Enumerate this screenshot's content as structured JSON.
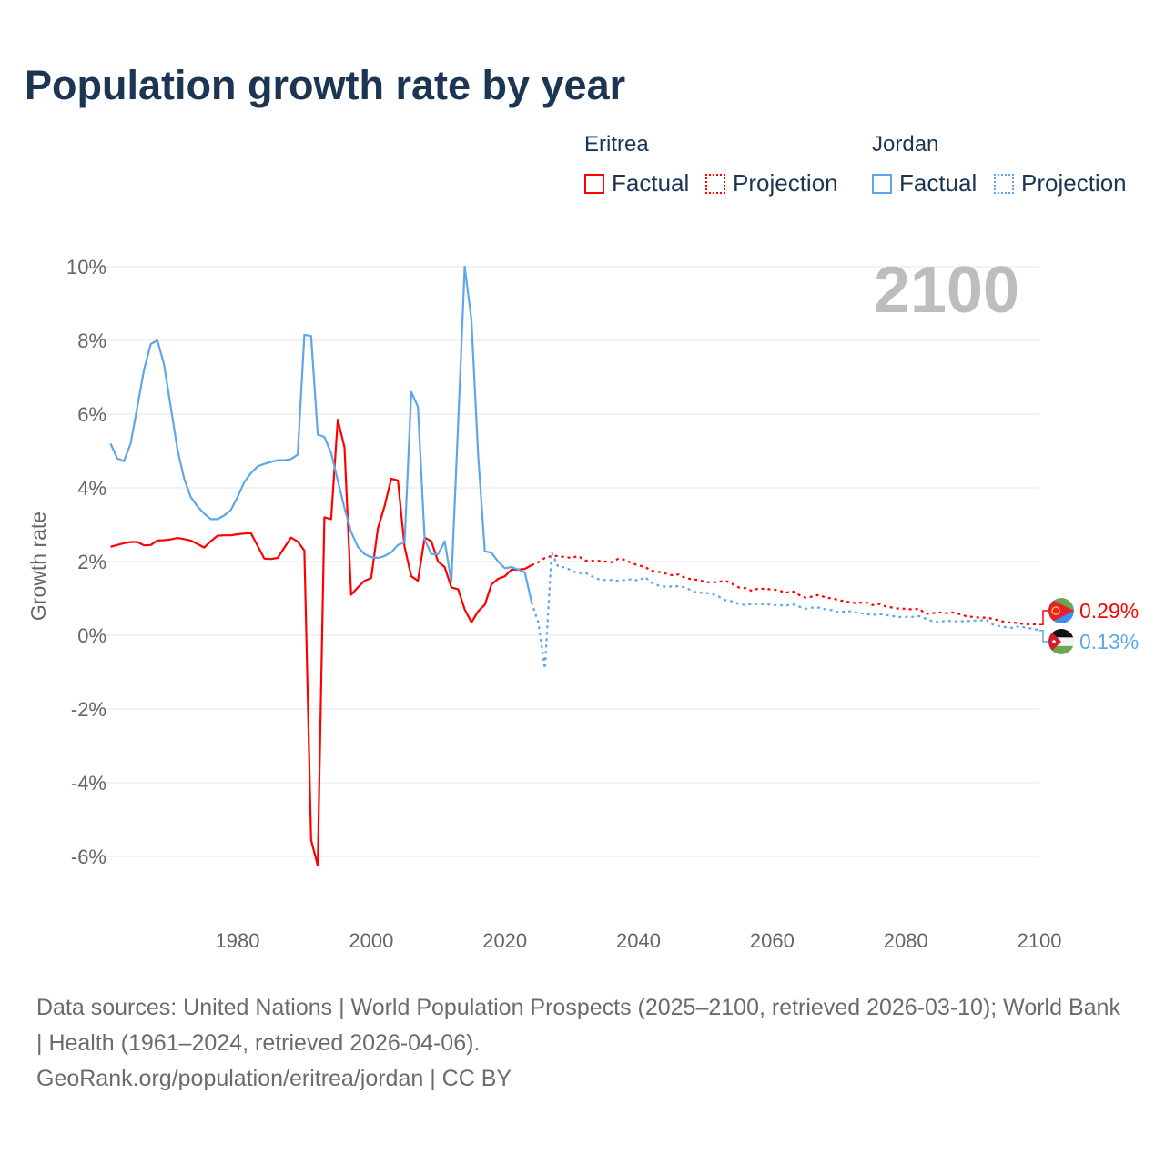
{
  "title": "Population growth rate by year",
  "legend": {
    "groups": [
      {
        "country": "Eritrea",
        "factual": "Factual",
        "projection": "Projection",
        "color": "#ff0000"
      },
      {
        "country": "Jordan",
        "factual": "Factual",
        "projection": "Projection",
        "color": "#5ea6ea"
      }
    ]
  },
  "footer": {
    "sources": "Data sources: United Nations | World Population Prospects (2025–2100, retrieved 2026-03-10); World Bank | Health (1961–2024, retrieved 2026-04-06).",
    "credit": "GeoRank.org/population/eritrea/jordan | CC BY"
  },
  "chart_data": {
    "type": "line",
    "title": "Population growth rate by year",
    "xlabel": "",
    "ylabel": "Growth rate",
    "xlim": [
      1961,
      2100
    ],
    "ylim": [
      -7.5,
      10.5
    ],
    "yticks": [
      -6,
      -4,
      -2,
      0,
      2,
      4,
      6,
      8,
      10
    ],
    "ytick_labels": [
      "-6%",
      "-4%",
      "-2%",
      "0%",
      "2%",
      "4%",
      "6%",
      "8%",
      "10%"
    ],
    "xticks": [
      1980,
      2000,
      2020,
      2040,
      2060,
      2080,
      2100
    ],
    "xtick_labels": [
      "1980",
      "2000",
      "2020",
      "2040",
      "2060",
      "2080",
      "2100"
    ],
    "grid": true,
    "year_watermark": "2100",
    "series": [
      {
        "name": "Eritrea Factual",
        "country": "Eritrea",
        "kind": "factual",
        "color": "#ff0000",
        "start_year": 1961,
        "values": [
          2.4,
          2.45,
          2.5,
          2.53,
          2.53,
          2.44,
          2.45,
          2.57,
          2.58,
          2.6,
          2.64,
          2.61,
          2.57,
          2.48,
          2.38,
          2.55,
          2.7,
          2.71,
          2.71,
          2.74,
          2.76,
          2.77,
          2.43,
          2.08,
          2.07,
          2.1,
          2.38,
          2.65,
          2.54,
          2.3,
          -5.55,
          -6.25,
          3.2,
          3.15,
          5.85,
          5.1,
          1.1,
          1.3,
          1.48,
          1.55,
          2.9,
          3.5,
          4.25,
          4.2,
          2.4,
          1.6,
          1.48,
          2.65,
          2.55,
          2.0,
          1.85,
          1.3,
          1.25,
          0.7,
          0.35,
          0.65,
          0.83,
          1.38,
          1.53,
          1.6,
          1.78,
          1.78,
          1.8,
          1.9
        ]
      },
      {
        "name": "Eritrea Projection",
        "country": "Eritrea",
        "kind": "projection",
        "color": "#ff0000",
        "start_year": 2024,
        "values": [
          1.9,
          1.98,
          2.1,
          2.15,
          2.15,
          2.12,
          2.1,
          2.15,
          2.03,
          2.02,
          2.02,
          2.0,
          1.98,
          2.08,
          2.05,
          1.95,
          1.9,
          1.85,
          1.75,
          1.72,
          1.68,
          1.63,
          1.65,
          1.55,
          1.52,
          1.5,
          1.45,
          1.43,
          1.45,
          1.48,
          1.4,
          1.3,
          1.28,
          1.2,
          1.28,
          1.25,
          1.25,
          1.22,
          1.15,
          1.2,
          1.1,
          1.02,
          1.05,
          1.1,
          1.02,
          1.0,
          0.95,
          0.92,
          0.88,
          0.88,
          0.9,
          0.82,
          0.85,
          0.78,
          0.75,
          0.72,
          0.72,
          0.7,
          0.72,
          0.58,
          0.6,
          0.62,
          0.6,
          0.62,
          0.58,
          0.52,
          0.5,
          0.48,
          0.48,
          0.45,
          0.4,
          0.35,
          0.35,
          0.32,
          0.3,
          0.3,
          0.29
        ]
      },
      {
        "name": "Jordan Factual",
        "country": "Jordan",
        "kind": "factual",
        "color": "#5ea6ea",
        "start_year": 1961,
        "values": [
          5.2,
          4.8,
          4.72,
          5.2,
          6.2,
          7.2,
          7.9,
          8.0,
          7.35,
          6.2,
          5.05,
          4.25,
          3.75,
          3.5,
          3.3,
          3.15,
          3.15,
          3.25,
          3.4,
          3.75,
          4.15,
          4.4,
          4.58,
          4.65,
          4.7,
          4.75,
          4.75,
          4.78,
          4.9,
          8.15,
          8.12,
          5.45,
          5.38,
          4.95,
          4.2,
          3.45,
          2.8,
          2.4,
          2.2,
          2.12,
          2.1,
          2.15,
          2.25,
          2.45,
          2.52,
          6.6,
          6.2,
          2.6,
          2.2,
          2.2,
          2.55,
          1.45,
          5.7,
          10.0,
          8.55,
          4.9,
          2.28,
          2.24,
          2.0,
          1.82,
          1.85,
          1.78,
          1.7,
          0.9
        ]
      },
      {
        "name": "Jordan Projection",
        "country": "Jordan",
        "kind": "projection",
        "color": "#5ea6ea",
        "start_year": 2024,
        "values": [
          0.9,
          0.35,
          -0.9,
          2.25,
          1.85,
          1.85,
          1.75,
          1.68,
          1.7,
          1.6,
          1.52,
          1.5,
          1.5,
          1.48,
          1.5,
          1.52,
          1.48,
          1.58,
          1.42,
          1.35,
          1.32,
          1.32,
          1.33,
          1.3,
          1.2,
          1.15,
          1.15,
          1.12,
          1.05,
          0.95,
          0.92,
          0.85,
          0.82,
          0.85,
          0.85,
          0.85,
          0.82,
          0.82,
          0.8,
          0.85,
          0.78,
          0.72,
          0.75,
          0.75,
          0.7,
          0.68,
          0.62,
          0.65,
          0.65,
          0.6,
          0.58,
          0.55,
          0.58,
          0.55,
          0.52,
          0.5,
          0.5,
          0.5,
          0.52,
          0.45,
          0.38,
          0.35,
          0.4,
          0.38,
          0.38,
          0.38,
          0.4,
          0.4,
          0.42,
          0.3,
          0.25,
          0.22,
          0.2,
          0.25,
          0.2,
          0.18,
          0.13
        ]
      }
    ],
    "end_labels": [
      {
        "country": "Eritrea",
        "text": "0.29%",
        "value": 0.29,
        "color": "#ff0000",
        "flag": "eritrea-flag"
      },
      {
        "country": "Jordan",
        "text": "0.13%",
        "value": 0.13,
        "color": "#5ea6ea",
        "flag": "jordan-flag"
      }
    ]
  }
}
